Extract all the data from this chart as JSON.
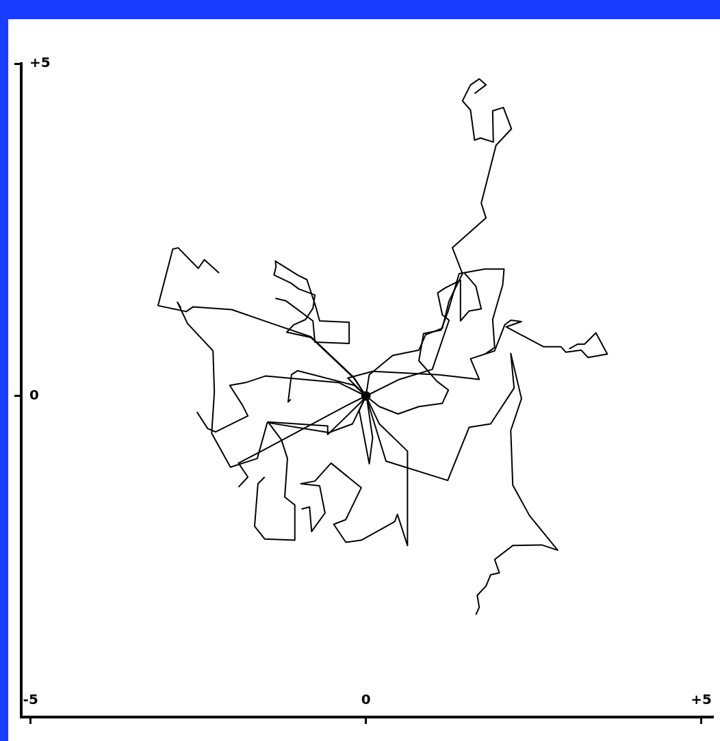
{
  "chart_data": {
    "type": "line",
    "xlim": [
      -5.14,
      5.17
    ],
    "ylim": [
      -4.83,
      5
    ],
    "xticks": [
      -5,
      0,
      {
        "value": 5,
        "label": "+5"
      }
    ],
    "yticks": [
      0,
      {
        "value": 5,
        "label": "+5"
      }
    ],
    "grid": false,
    "legend": false,
    "series": [
      {
        "color": "#000000",
        "x": [
          0,
          0.05,
          0.4,
          0.79,
          0.89,
          1.14,
          1.24,
          1.44,
          1.29,
          1.79,
          1.72,
          1.94,
          2.17,
          2.05,
          1.89,
          1.9,
          1.71,
          1.62,
          1.56,
          1.44,
          1.56,
          1.69,
          1.79,
          1.62
        ],
        "values": [
          0,
          0.32,
          0.61,
          0.69,
          0.92,
          1.02,
          1.43,
          1.84,
          2.23,
          2.68,
          2.9,
          3.77,
          4.02,
          4.34,
          4.29,
          3.82,
          3.88,
          3.85,
          4.3,
          4.44,
          4.68,
          4.77,
          4.68,
          4.55
        ]
      },
      {
        "color": "#000000",
        "x": [
          0,
          -0.27,
          0.1,
          1.09,
          1.69,
          1.56,
          1.92,
          2.07,
          2.16,
          2.32,
          2.09,
          2.65,
          2.91,
          2.98,
          3.21,
          3.31,
          3.6,
          3.43,
          3.26,
          3.16,
          3.03
        ],
        "values": [
          0,
          0.27,
          0.37,
          0.32,
          0.25,
          0.56,
          0.68,
          1.07,
          1.14,
          1.12,
          1.04,
          0.74,
          0.74,
          0.66,
          0.69,
          0.58,
          0.63,
          0.95,
          0.78,
          0.78,
          0.71
        ]
      },
      {
        "color": "#000000",
        "x": [
          0,
          0.2,
          0.48,
          0.79,
          1.14,
          1.23,
          1.06,
          0.79,
          0.86,
          1.12,
          1.22,
          1.39,
          1.77,
          2.06,
          2.04,
          1.89,
          1.92,
          1.79
        ],
        "values": [
          0,
          -0.16,
          -0.27,
          -0.16,
          -0.11,
          0.09,
          0.22,
          0.53,
          0.94,
          0.99,
          1.26,
          1.84,
          1.91,
          1.91,
          1.67,
          1.15,
          0.73,
          0.64
        ]
      },
      {
        "color": "#000000",
        "x": [
          0,
          0.5,
          0.99,
          1.24,
          1.14,
          1.07,
          1.19,
          1.41,
          1.41,
          1.54,
          1.72,
          1.64,
          1.47
        ],
        "values": [
          0,
          0.25,
          0.4,
          1.14,
          1.22,
          1.55,
          1.63,
          1.74,
          1.13,
          1.28,
          1.31,
          1.65,
          1.85
        ]
      },
      {
        "color": "#000000",
        "x": [
          0,
          0.3,
          1.22,
          1.54,
          1.86,
          2.21,
          2.16,
          2.32,
          2.16,
          2.19,
          2.44,
          2.86,
          2.62,
          2.19,
          1.92,
          1.99,
          1.86,
          1.79,
          1.66,
          1.69,
          1.64
        ],
        "values": [
          0,
          -0.98,
          -1.27,
          -0.47,
          -0.42,
          0.12,
          0.64,
          -0.04,
          -0.52,
          -1.34,
          -1.8,
          -2.32,
          -2.24,
          -2.25,
          -2.46,
          -2.66,
          -2.69,
          -2.86,
          -3.0,
          -3.18,
          -3.29
        ]
      },
      {
        "color": "#000000",
        "x": [
          0,
          0.2,
          0.62,
          0.62,
          0.47,
          0.43,
          -0.07,
          -0.3,
          -0.48,
          -0.3,
          -0.07,
          -0.52,
          -0.76,
          -0.97,
          -0.69,
          -0.61,
          -0.81,
          -0.84,
          -0.96
        ],
        "values": [
          0,
          -0.42,
          -0.83,
          -2.25,
          -1.78,
          -1.89,
          -2.17,
          -2.2,
          -1.93,
          -1.86,
          -1.38,
          -1.01,
          -1.28,
          -1.32,
          -1.35,
          -1.76,
          -2.04,
          -1.67,
          -1.7
        ]
      },
      {
        "color": "#000000",
        "x": [
          0,
          -0.1,
          0.05,
          0.1,
          0.02
        ],
        "values": [
          0,
          -0.22,
          -1.02,
          -0.63,
          -0.08
        ]
      },
      {
        "color": "#000000",
        "x": [
          0,
          -0.07,
          -0.57,
          -0.57,
          -1.46,
          -1.26,
          -1.17,
          -1.21,
          -1.06,
          -1.06,
          -1.51,
          -1.66,
          -1.61,
          -1.51
        ],
        "values": [
          0,
          -0.09,
          -0.58,
          -0.45,
          -0.39,
          -0.66,
          -0.94,
          -1.52,
          -1.64,
          -2.17,
          -2.15,
          -1.96,
          -1.32,
          -1.22
        ]
      },
      {
        "color": "#000000",
        "x": [
          0,
          -0.17,
          -1.02,
          -1.11,
          -1.16,
          -1.12
        ],
        "values": [
          0,
          0.16,
          0.38,
          0.32,
          -0.09,
          -0.05
        ]
      },
      {
        "color": "#000000",
        "x": [
          0,
          -0.18,
          -0.82,
          -1.4,
          -2.0,
          -2.58,
          -2.68,
          -3.1,
          -2.88,
          -2.8,
          -2.5,
          -2.41,
          -2.19
        ],
        "values": [
          0,
          0.28,
          0.89,
          1.09,
          1.3,
          1.34,
          1.27,
          1.36,
          2.21,
          2.23,
          1.92,
          2.05,
          1.85
        ]
      },
      {
        "color": "#000000",
        "x": [
          0,
          -0.18,
          -0.82,
          -1.18,
          -1.08,
          -0.9,
          -0.79,
          -0.76,
          -1.0,
          -1.12,
          -1.37,
          -1.34,
          -1.35,
          -1.02,
          -0.88,
          -0.75,
          -0.69,
          -0.25,
          -0.25,
          -0.76,
          -0.79,
          -1.19,
          -1.35
        ],
        "values": [
          0,
          0.27,
          0.88,
          0.96,
          1.07,
          1.15,
          1.32,
          1.52,
          1.61,
          1.7,
          1.82,
          1.95,
          2.03,
          1.82,
          1.75,
          1.35,
          1.13,
          1.11,
          0.79,
          0.81,
          1.13,
          1.43,
          1.47
        ]
      },
      {
        "color": "#000000",
        "x": [
          0,
          -0.2,
          -0.55,
          -1.47,
          -1.62,
          -2.02,
          -2.3,
          -2.26,
          -2.28,
          -2.66,
          -2.81,
          -2.76
        ],
        "values": [
          0,
          -0.42,
          -0.55,
          -0.4,
          -0.94,
          -1.07,
          -0.56,
          0.06,
          0.68,
          1.09,
          1.41,
          1.33
        ]
      },
      {
        "color": "#000000",
        "x": [
          0,
          -0.4,
          -1.5,
          -1.8,
          -2.03,
          -1.84,
          -1.76,
          -2.24,
          -2.36,
          -2.52
        ],
        "values": [
          0,
          0.2,
          0.3,
          0.2,
          0.16,
          -0.14,
          -0.3,
          -0.54,
          -0.49,
          -0.24
        ]
      },
      {
        "color": "#000000",
        "x": [
          0,
          -0.3,
          -1.5,
          -1.9,
          -1.76,
          -1.9
        ],
        "values": [
          0,
          -0.15,
          -0.8,
          -1.01,
          -1.22,
          -1.37
        ]
      },
      {
        "type": "scatter",
        "color": "#000000",
        "x": [
          0
        ],
        "values": [
          0
        ]
      }
    ]
  }
}
